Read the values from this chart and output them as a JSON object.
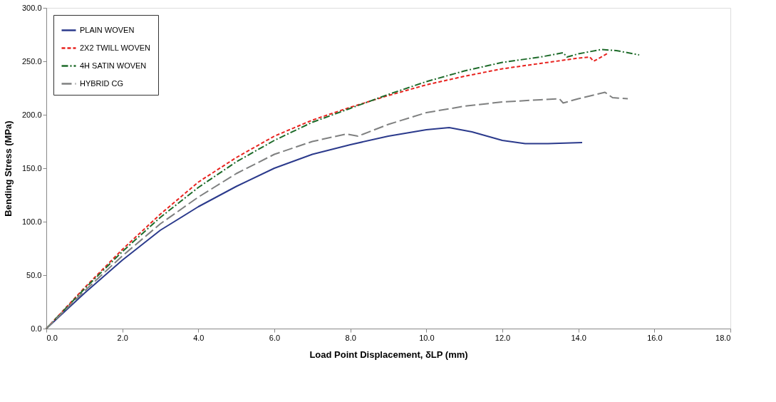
{
  "chart_data": {
    "type": "line",
    "xlabel": "Load Point Displacement, δLP (mm)",
    "ylabel": "Bending Stress (MPa)",
    "xlim": [
      0,
      18
    ],
    "ylim": [
      0,
      300
    ],
    "xticks": [
      {
        "value": 0,
        "label": "0.0"
      },
      {
        "value": 2,
        "label": "2.0"
      },
      {
        "value": 4,
        "label": "4.0"
      },
      {
        "value": 6,
        "label": "6.0"
      },
      {
        "value": 8,
        "label": "8.0"
      },
      {
        "value": 10,
        "label": "10.0"
      },
      {
        "value": 12,
        "label": "12.0"
      },
      {
        "value": 14,
        "label": "14.0"
      },
      {
        "value": 16,
        "label": "16.0"
      },
      {
        "value": 18,
        "label": "18.0"
      }
    ],
    "yticks": [
      {
        "value": 0,
        "label": "0.0"
      },
      {
        "value": 50,
        "label": "50.0"
      },
      {
        "value": 100,
        "label": "100.0"
      },
      {
        "value": 150,
        "label": "150.0"
      },
      {
        "value": 200,
        "label": "200.0"
      },
      {
        "value": 250,
        "label": "250.0"
      },
      {
        "value": 300,
        "label": "300.0"
      }
    ],
    "grid": false,
    "legend": "top left",
    "marker": "none",
    "series": [
      {
        "name": "PLAIN WOVEN",
        "color": "#2b3a8c",
        "line_style": "solid",
        "x": [
          0,
          1,
          2,
          3,
          4,
          5,
          6,
          7,
          8,
          9,
          10,
          10.6,
          11.2,
          12,
          12.6,
          13.2,
          14.1
        ],
        "values": [
          0,
          33,
          64,
          92,
          114,
          133,
          150,
          163,
          172,
          180,
          186,
          188,
          184,
          176,
          173,
          173,
          174
        ]
      },
      {
        "name": "2X2 TWILL WOVEN",
        "color": "#e8231f",
        "line_style": "dashed",
        "x": [
          0,
          1,
          2,
          3,
          4,
          5,
          6,
          7,
          8,
          9,
          10,
          11,
          12,
          13,
          14,
          14.3,
          14.4,
          14.8
        ],
        "values": [
          0,
          38,
          74,
          107,
          137,
          160,
          180,
          195,
          207,
          218,
          228,
          236,
          243,
          248,
          253,
          254,
          250,
          258
        ]
      },
      {
        "name": "4H SATIN WOVEN",
        "color": "#1e6b2a",
        "line_style": "dotted",
        "x": [
          0,
          1,
          2,
          3,
          4,
          5,
          6,
          7,
          8,
          9,
          10,
          11,
          12,
          13,
          13.6,
          13.7,
          14,
          14.6,
          15,
          15.6
        ],
        "values": [
          0,
          37,
          72,
          104,
          132,
          156,
          176,
          193,
          206,
          219,
          231,
          241,
          249,
          254,
          258,
          254,
          257,
          261,
          260,
          256
        ]
      },
      {
        "name": "HYBRID CG",
        "color": "#7f8080",
        "line_style": "dashed",
        "x": [
          0,
          1,
          2,
          3,
          4,
          5,
          6,
          7,
          7.9,
          8.2,
          9,
          10,
          11,
          12,
          13,
          13.5,
          13.6,
          14,
          14.7,
          14.9,
          15.3
        ],
        "values": [
          0,
          35,
          68,
          98,
          123,
          145,
          163,
          175,
          182,
          180,
          191,
          202,
          208,
          212,
          214,
          215,
          211,
          215,
          221,
          216,
          215
        ]
      }
    ]
  }
}
